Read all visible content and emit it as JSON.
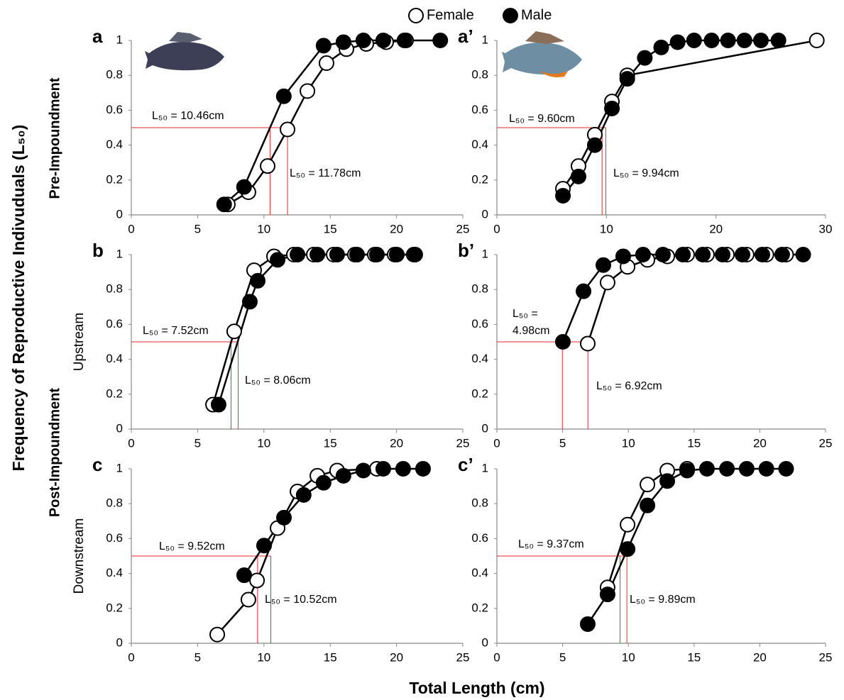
{
  "legend": [
    {
      "name": "Female",
      "color": "#ffffff"
    },
    {
      "name": "Male",
      "color": "#000000"
    }
  ],
  "y_title": "Frequency of Reproductive Indivuduals (L₅₀)",
  "x_title": "Total Length (cm)",
  "row_labels": {
    "pre": "Pre-Impoundment",
    "post": "Post-Impoundment",
    "upstream": "Upstream",
    "downstream": "Downstream"
  },
  "chart_data": [
    {
      "type": "scatter",
      "label": "a",
      "xlim": [
        0,
        25
      ],
      "xticks": [
        0,
        5,
        10,
        15,
        20,
        25
      ],
      "ylim": [
        0,
        1
      ],
      "yticks": [
        0,
        0.2,
        0.4,
        0.6,
        0.8,
        1
      ],
      "reference_y": 0.5,
      "series": [
        {
          "color": "#ffffff",
          "x": [
            7.28,
            8.83,
            10.28,
            11.78,
            13.28,
            14.72,
            16.22,
            17.72,
            19.22,
            20.72
          ],
          "values": [
            0.06,
            0.13,
            0.28,
            0.49,
            0.71,
            0.87,
            0.95,
            0.98,
            0.99,
            1
          ]
        },
        {
          "color": "#000000",
          "x": [
            7.0,
            8.5,
            11.5,
            14.5,
            16.0,
            17.5,
            19.0,
            20.6,
            23.3
          ],
          "values": [
            0.06,
            0.16,
            0.68,
            0.97,
            0.99,
            1,
            1,
            1,
            1
          ]
        }
      ],
      "annotations": [
        {
          "lines": [
            "L₅₀ = 10.46cm"
          ],
          "x": 10.46
        },
        {
          "lines": [
            "L₅₀ = 11.78cm"
          ],
          "x": 11.78
        }
      ]
    },
    {
      "type": "scatter",
      "label": "a’",
      "xlim": [
        0,
        30
      ],
      "xticks": [
        0,
        10,
        20,
        30
      ],
      "ylim": [
        0,
        1
      ],
      "yticks": [
        0,
        0.2,
        0.4,
        0.6,
        0.8,
        1
      ],
      "reference_y": 0.5,
      "series": [
        {
          "color": "#ffffff",
          "x": [
            6.03,
            7.45,
            8.94,
            10.5,
            11.9,
            29.2
          ],
          "values": [
            0.15,
            0.28,
            0.46,
            0.65,
            0.8,
            1
          ]
        },
        {
          "color": "#000000",
          "x": [
            6.03,
            7.45,
            8.94,
            10.5,
            11.9,
            13.5,
            15.0,
            16.5,
            18.0,
            19.6,
            21.1,
            22.6,
            24.1,
            25.7
          ],
          "values": [
            0.11,
            0.22,
            0.4,
            0.61,
            0.78,
            0.9,
            0.96,
            0.99,
            1,
            1,
            1,
            1,
            1,
            1
          ]
        }
      ],
      "annotations": [
        {
          "lines": [
            "L₅₀ = 9.60cm"
          ],
          "x": 9.6
        },
        {
          "lines": [
            "L₅₀ = 9.94cm"
          ],
          "x": 9.94
        }
      ]
    },
    {
      "type": "scatter",
      "label": "b",
      "xlim": [
        0,
        25
      ],
      "xticks": [
        0,
        5,
        10,
        15,
        20,
        25
      ],
      "ylim": [
        0,
        1
      ],
      "yticks": [
        0,
        0.2,
        0.4,
        0.6,
        0.8,
        1
      ],
      "reference_y": 0.5,
      "series": [
        {
          "color": "#ffffff",
          "x": [
            6.16,
            7.76,
            9.26,
            10.76,
            12.26,
            13.76,
            15.26,
            16.86,
            18.36,
            19.86,
            21.3
          ],
          "values": [
            0.14,
            0.56,
            0.91,
            0.99,
            1,
            1,
            1,
            1,
            1,
            1,
            1
          ]
        },
        {
          "color": "#000000",
          "x": [
            6.58,
            8.94,
            9.53,
            11.03,
            12.53,
            14.03,
            15.52,
            17.02,
            18.52,
            20.02,
            21.41
          ],
          "values": [
            0.14,
            0.73,
            0.85,
            0.97,
            1,
            1,
            1,
            1,
            1,
            1,
            1
          ]
        }
      ],
      "annotations": [
        {
          "lines": [
            "L₅₀ = 7.52cm"
          ],
          "x": 7.52
        },
        {
          "lines": [
            "L₅₀ = 8.06cm"
          ],
          "x": 8.06
        }
      ]
    },
    {
      "type": "scatter",
      "label": "b’",
      "xlim": [
        0,
        25
      ],
      "xticks": [
        0,
        5,
        10,
        15,
        20,
        25
      ],
      "ylim": [
        0,
        1
      ],
      "yticks": [
        0,
        0.2,
        0.4,
        0.6,
        0.8,
        1
      ],
      "reference_y": 0.5,
      "series": [
        {
          "color": "#ffffff",
          "x": [
            6.91,
            8.42,
            9.94,
            11.45,
            12.96,
            14.47,
            15.98,
            17.5,
            19.0,
            20.5,
            22.0
          ],
          "values": [
            0.49,
            0.84,
            0.93,
            0.97,
            0.99,
            1,
            1,
            1,
            1,
            1,
            1
          ]
        },
        {
          "color": "#000000",
          "x": [
            5.02,
            6.59,
            8.1,
            9.61,
            11.12,
            12.63,
            14.15,
            15.66,
            17.17,
            18.68,
            20.19,
            21.7,
            23.3
          ],
          "values": [
            0.5,
            0.79,
            0.94,
            0.99,
            1,
            1,
            1,
            1,
            1,
            1,
            1,
            1,
            1
          ]
        }
      ],
      "annotations": [
        {
          "lines": [
            "L₅₀ =",
            "4.98cm"
          ],
          "x": 4.98
        },
        {
          "lines": [
            "L₅₀ = 6.92cm"
          ],
          "x": 6.92
        }
      ]
    },
    {
      "type": "scatter",
      "label": "c",
      "xlim": [
        0,
        25
      ],
      "xticks": [
        0,
        5,
        10,
        15,
        20,
        25
      ],
      "ylim": [
        0,
        1
      ],
      "yticks": [
        0,
        0.2,
        0.4,
        0.6,
        0.8,
        1
      ],
      "reference_y": 0.5,
      "series": [
        {
          "color": "#ffffff",
          "x": [
            6.48,
            8.83,
            9.48,
            11.03,
            12.53,
            14.03,
            15.52,
            18.52
          ],
          "values": [
            0.05,
            0.25,
            0.36,
            0.66,
            0.87,
            0.96,
            0.99,
            1
          ]
        },
        {
          "color": "#000000",
          "x": [
            8.51,
            10.01,
            11.51,
            13.0,
            14.5,
            16.0,
            17.5,
            19.0,
            20.5,
            22.0
          ],
          "values": [
            0.39,
            0.56,
            0.72,
            0.85,
            0.92,
            0.96,
            0.99,
            1,
            1,
            1
          ]
        }
      ],
      "annotations": [
        {
          "lines": [
            "L₅₀ = 9.52cm"
          ],
          "x": 9.52
        },
        {
          "lines": [
            "L₅₀ = 10.52cm"
          ],
          "x": 10.52
        }
      ]
    },
    {
      "type": "scatter",
      "label": "c’",
      "xlim": [
        0,
        25
      ],
      "xticks": [
        0,
        5,
        10,
        15,
        20,
        25
      ],
      "ylim": [
        0,
        1
      ],
      "yticks": [
        0,
        0.2,
        0.4,
        0.6,
        0.8,
        1
      ],
      "reference_y": 0.5,
      "series": [
        {
          "color": "#ffffff",
          "x": [
            8.42,
            9.94,
            11.45,
            12.96,
            14.47
          ],
          "values": [
            0.32,
            0.68,
            0.91,
            0.99,
            1
          ]
        },
        {
          "color": "#000000",
          "x": [
            6.91,
            8.42,
            9.94,
            11.45,
            12.96,
            14.47,
            15.98,
            17.5,
            19.0,
            20.5,
            22.0
          ],
          "values": [
            0.11,
            0.28,
            0.54,
            0.79,
            0.93,
            0.99,
            1,
            1,
            1,
            1,
            1
          ]
        }
      ],
      "annotations": [
        {
          "lines": [
            "L₅₀ = 9.37cm"
          ],
          "x": 9.37
        },
        {
          "lines": [
            "L₅₀ = 9.89cm"
          ],
          "x": 9.89
        }
      ]
    }
  ]
}
